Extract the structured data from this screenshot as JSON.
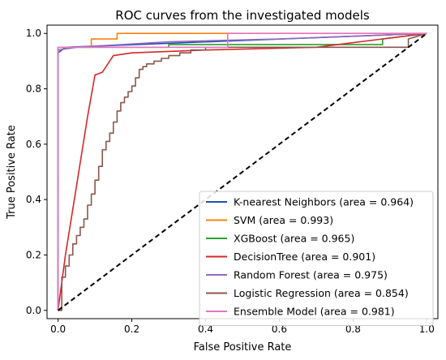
{
  "chart_data": {
    "type": "line",
    "title": "ROC curves from the investigated models",
    "xlabel": "False Positive Rate",
    "ylabel": "True Positive Rate",
    "xlim": [
      -0.03,
      1.03
    ],
    "ylim": [
      -0.03,
      1.03
    ],
    "xticks": [
      0.0,
      0.2,
      0.4,
      0.6,
      0.8,
      1.0
    ],
    "yticks": [
      0.0,
      0.2,
      0.4,
      0.6,
      0.8,
      1.0
    ],
    "xtick_labels": [
      "0.0",
      "0.2",
      "0.4",
      "0.6",
      "0.8",
      "1.0"
    ],
    "ytick_labels": [
      "0.0",
      "0.2",
      "0.4",
      "0.6",
      "0.8",
      "1.0"
    ],
    "grid": false,
    "legend_position": "lower-right",
    "series": [
      {
        "name": "K-nearest Neighbors (area = 0.964)",
        "color": "#1f4fb4",
        "x": [
          0,
          0,
          0.02,
          1
        ],
        "y": [
          0,
          0.93,
          0.95,
          1
        ]
      },
      {
        "name": "SVM (area = 0.993)",
        "color": "#ff7f0e",
        "x": [
          0,
          0,
          0.09,
          0.09,
          0.16,
          0.16,
          0.3,
          0.3,
          1
        ],
        "y": [
          0,
          0.95,
          0.95,
          0.98,
          0.98,
          1.0,
          1.0,
          1.0,
          1.0
        ]
      },
      {
        "name": "XGBoost (area = 0.965)",
        "color": "#2ca02c",
        "x": [
          0,
          0,
          0.3,
          0.3,
          0.88,
          0.88,
          1
        ],
        "y": [
          0,
          0.95,
          0.95,
          0.96,
          0.96,
          0.98,
          1
        ]
      },
      {
        "name": "DecisionTree (area = 0.901)",
        "color": "#d62728",
        "x": [
          0,
          0.02,
          0.05,
          0.08,
          0.1,
          0.12,
          0.15,
          0.2,
          0.4,
          0.7,
          1
        ],
        "y": [
          0,
          0.2,
          0.45,
          0.7,
          0.85,
          0.86,
          0.92,
          0.93,
          0.94,
          0.95,
          1
        ]
      },
      {
        "name": "Random Forest (area = 0.975)",
        "color": "#9467bd",
        "x": [
          0,
          0,
          0.05,
          0.3,
          0.6,
          1
        ],
        "y": [
          0,
          0.94,
          0.95,
          0.97,
          0.98,
          1
        ]
      },
      {
        "name": "Logistic Regression (area = 0.854)",
        "color": "#8c564b",
        "x": [
          0,
          0.01,
          0.01,
          0.02,
          0.02,
          0.03,
          0.03,
          0.04,
          0.04,
          0.05,
          0.05,
          0.06,
          0.06,
          0.07,
          0.07,
          0.08,
          0.08,
          0.09,
          0.09,
          0.1,
          0.1,
          0.11,
          0.11,
          0.12,
          0.12,
          0.13,
          0.13,
          0.14,
          0.14,
          0.15,
          0.15,
          0.16,
          0.16,
          0.17,
          0.17,
          0.18,
          0.18,
          0.19,
          0.19,
          0.2,
          0.2,
          0.21,
          0.21,
          0.22,
          0.22,
          0.23,
          0.23,
          0.24,
          0.24,
          0.26,
          0.26,
          0.28,
          0.28,
          0.3,
          0.3,
          0.33,
          0.33,
          0.36,
          0.36,
          0.4,
          0.4,
          0.45,
          0.45,
          0.95,
          0.95,
          1.0
        ],
        "y": [
          0,
          0,
          0.12,
          0.12,
          0.16,
          0.16,
          0.2,
          0.2,
          0.24,
          0.24,
          0.27,
          0.27,
          0.3,
          0.3,
          0.33,
          0.33,
          0.38,
          0.38,
          0.42,
          0.42,
          0.47,
          0.47,
          0.52,
          0.52,
          0.58,
          0.58,
          0.61,
          0.61,
          0.64,
          0.64,
          0.68,
          0.68,
          0.72,
          0.72,
          0.75,
          0.75,
          0.77,
          0.77,
          0.79,
          0.79,
          0.81,
          0.81,
          0.84,
          0.84,
          0.87,
          0.87,
          0.88,
          0.88,
          0.89,
          0.89,
          0.9,
          0.9,
          0.91,
          0.91,
          0.92,
          0.92,
          0.93,
          0.93,
          0.94,
          0.94,
          0.95,
          0.95,
          0.95,
          0.95,
          0.98,
          1.0
        ]
      },
      {
        "name": "Ensemble Model (area = 0.981)",
        "color": "#e377c2",
        "x": [
          0,
          0,
          0.46,
          0.46,
          1
        ],
        "y": [
          0,
          0.95,
          0.95,
          1.0,
          1.0
        ]
      },
      {
        "name": "",
        "color": "#000000",
        "dashed": true,
        "x": [
          0,
          1
        ],
        "y": [
          0,
          1
        ]
      }
    ]
  }
}
